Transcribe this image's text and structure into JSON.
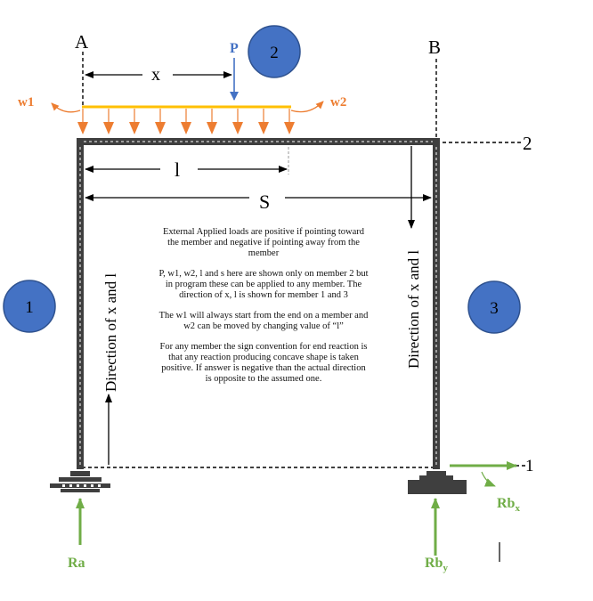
{
  "labels": {
    "point_a": "A",
    "point_b": "B",
    "line_1": "1",
    "line_2": "2",
    "load_p": "P",
    "load_w1": "w1",
    "load_w2": "w2",
    "dim_x": "x",
    "dim_l": "l",
    "dim_s": "S",
    "member_1": "1",
    "member_2": "2",
    "member_3": "3",
    "direction_left": "Direction of x and l",
    "direction_right": "Direction of x and l",
    "reaction_ra": "Ra",
    "reaction_rby_main": "Rb",
    "reaction_rby_sub": "y",
    "reaction_rbx_main": "Rb",
    "reaction_rbx_sub": "x"
  },
  "notes": [
    "External Applied loads are positive if pointing toward the member and negative if pointing away from the member",
    "P, w1, w2, l and s here are shown only on member 2 but in program these can be applied to any member. The direction of x, l is shown for member 1 and 3",
    "The w1 will always start from the end on a member and w2 can be moved by changing value of “l”",
    "For any member the sign convention for end reaction is that any reaction producing concave shape is taken positive. If answer is negative than the actual direction is opposite to the assumed one."
  ],
  "colors": {
    "frame": "#3f3f3f",
    "member_badge": "#4472c4",
    "udl_line": "#ffc000",
    "load_arrows": "#ed7d31",
    "point_load": "#4472c4",
    "reaction": "#70ad47"
  }
}
